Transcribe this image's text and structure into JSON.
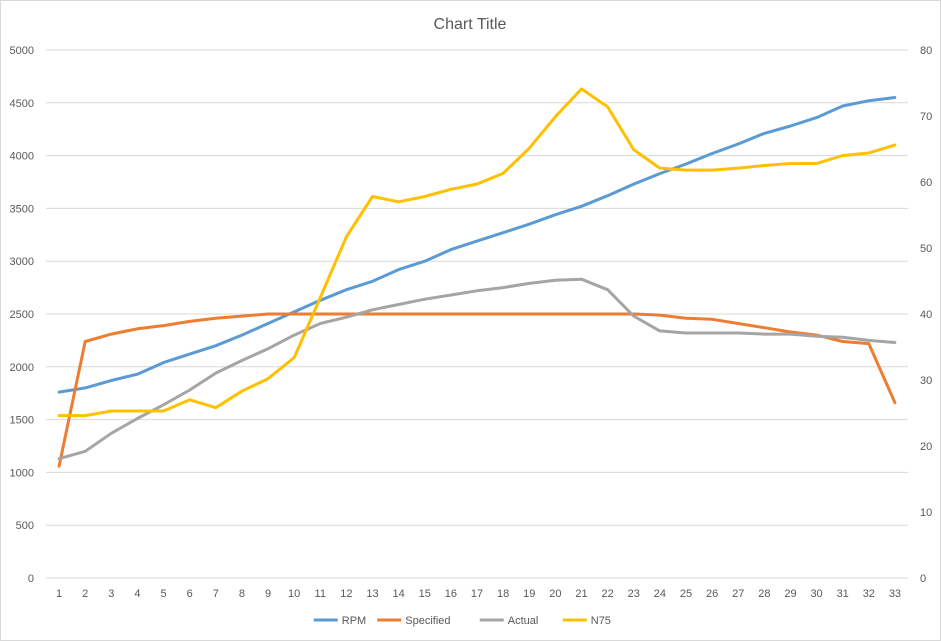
{
  "chart_data": {
    "type": "line",
    "title": "Chart Title",
    "categories": [
      "1",
      "2",
      "3",
      "4",
      "5",
      "6",
      "7",
      "8",
      "9",
      "10",
      "11",
      "12",
      "13",
      "14",
      "15",
      "16",
      "17",
      "18",
      "19",
      "20",
      "21",
      "22",
      "23",
      "24",
      "25",
      "26",
      "27",
      "28",
      "29",
      "30",
      "31",
      "32",
      "33"
    ],
    "y_left": {
      "min": 0,
      "max": 5000,
      "step": 500,
      "ticks": [
        "0",
        "500",
        "1000",
        "1500",
        "2000",
        "2500",
        "3000",
        "3500",
        "4000",
        "4500",
        "5000"
      ]
    },
    "y_right": {
      "min": 0,
      "max": 80,
      "step": 10,
      "ticks": [
        "0",
        "10",
        "20",
        "30",
        "40",
        "50",
        "60",
        "70",
        "80"
      ]
    },
    "grid": true,
    "legend_position": "bottom",
    "series": [
      {
        "name": "RPM",
        "axis": "left",
        "color": "#5B9BD5",
        "values": [
          1760,
          1800,
          1870,
          1930,
          2040,
          2120,
          2200,
          2300,
          2410,
          2520,
          2630,
          2730,
          2810,
          2920,
          3000,
          3110,
          3190,
          3270,
          3350,
          3440,
          3520,
          3620,
          3730,
          3830,
          3920,
          4020,
          4110,
          4210,
          4280,
          4360,
          4470,
          4520,
          4550
        ]
      },
      {
        "name": "Specified",
        "axis": "left",
        "color": "#ED7D31",
        "values": [
          1060,
          2240,
          2310,
          2360,
          2390,
          2430,
          2460,
          2480,
          2500,
          2500,
          2500,
          2500,
          2500,
          2500,
          2500,
          2500,
          2500,
          2500,
          2500,
          2500,
          2500,
          2500,
          2500,
          2490,
          2460,
          2450,
          2410,
          2370,
          2330,
          2300,
          2240,
          2220,
          1660
        ]
      },
      {
        "name": "Actual",
        "axis": "left",
        "color": "#A5A5A5",
        "values": [
          1130,
          1200,
          1370,
          1510,
          1640,
          1780,
          1940,
          2060,
          2170,
          2300,
          2410,
          2470,
          2540,
          2590,
          2640,
          2680,
          2720,
          2750,
          2790,
          2820,
          2830,
          2730,
          2480,
          2340,
          2320,
          2320,
          2320,
          2310,
          2310,
          2290,
          2280,
          2250,
          2230
        ]
      },
      {
        "name": "N75",
        "axis": "right",
        "color": "#FFC000",
        "values": [
          24.6,
          24.6,
          25.3,
          25.3,
          25.3,
          27.0,
          25.8,
          28.3,
          30.2,
          33.4,
          42.5,
          51.7,
          57.8,
          57.0,
          57.8,
          58.9,
          59.7,
          61.3,
          65.1,
          69.9,
          74.1,
          71.4,
          64.9,
          62.1,
          61.8,
          61.8,
          62.1,
          62.5,
          62.8,
          62.8,
          64.0,
          64.4,
          65.6
        ]
      }
    ]
  }
}
